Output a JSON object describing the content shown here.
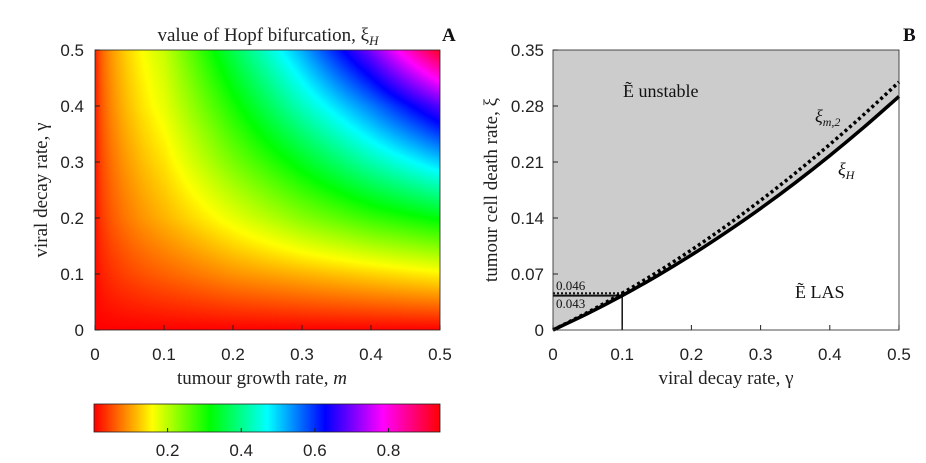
{
  "chart_data": [
    {
      "type": "heatmap",
      "panel_label": "A",
      "title": "value of Hopf bifurcation, ξ_H",
      "title_text": "value of Hopf bifurcation, ξ",
      "title_sub": "H",
      "xlabel": "tumour growth rate, m",
      "xlabel_text": "tumour growth rate, ",
      "xlabel_var": "m",
      "ylabel": "viral decay rate, γ",
      "xlim": [
        0,
        0.5
      ],
      "ylim": [
        0,
        0.5
      ],
      "xticks": [
        "0",
        "0.1",
        "0.2",
        "0.3",
        "0.4",
        "0.5"
      ],
      "yticks": [
        "0",
        "0.1",
        "0.2",
        "0.3",
        "0.4",
        "0.5"
      ],
      "colormap": "hsv",
      "grid_x": [
        0,
        0.1,
        0.2,
        0.3,
        0.4,
        0.5
      ],
      "grid_y": [
        0,
        0.1,
        0.2,
        0.3,
        0.4,
        0.5
      ],
      "z": [
        [
          0,
          0,
          0,
          0,
          0,
          0
        ],
        [
          0,
          0.06,
          0.09,
          0.11,
          0.13,
          0.15
        ],
        [
          0,
          0.11,
          0.17,
          0.23,
          0.28,
          0.32
        ],
        [
          0,
          0.14,
          0.24,
          0.33,
          0.42,
          0.5
        ],
        [
          0,
          0.17,
          0.3,
          0.43,
          0.55,
          0.68
        ],
        [
          0,
          0.19,
          0.36,
          0.52,
          0.7,
          0.92
        ]
      ],
      "colorbar": {
        "range": [
          0,
          0.94
        ],
        "ticks": [
          "0.2",
          "0.4",
          "0.6",
          "0.8"
        ],
        "location": "bottom"
      }
    },
    {
      "type": "line",
      "panel_label": "B",
      "xlabel": "viral decay rate, γ",
      "ylabel": "tumour cell death rate, ξ",
      "xlim": [
        0,
        0.5
      ],
      "ylim": [
        0,
        0.35
      ],
      "xticks": [
        "0",
        "0.1",
        "0.2",
        "0.3",
        "0.4",
        "0.5"
      ],
      "yticks": [
        "0",
        "0.07",
        "0.14",
        "0.21",
        "0.28",
        "0.35"
      ],
      "x": [
        0,
        0.05,
        0.1,
        0.15,
        0.2,
        0.25,
        0.3,
        0.35,
        0.4,
        0.45,
        0.5
      ],
      "series": [
        {
          "name": "ξ_H",
          "style": "solid",
          "values": [
            0,
            0.0205,
            0.043,
            0.0674,
            0.0937,
            0.122,
            0.152,
            0.184,
            0.218,
            0.254,
            0.292
          ]
        },
        {
          "name": "ξ_m,2",
          "style": "dotted",
          "values": [
            0,
            0.022,
            0.046,
            0.072,
            0.1,
            0.13,
            0.162,
            0.196,
            0.232,
            0.27,
            0.31
          ]
        }
      ],
      "shaded_region": {
        "label": "Ẽ unstable",
        "color": "#cccccc",
        "bounded_below_by": "ξ_H"
      },
      "region_labels": {
        "unstable": "Ẽ unstable",
        "stable": "Ẽ LAS"
      },
      "curve_labels": {
        "xi_m2": "ξ",
        "xi_m2_sub": "m,2",
        "xi_H": "ξ",
        "xi_H_sub": "H"
      },
      "reference": {
        "x": 0.1,
        "y_H": 0.043,
        "y_m2": 0.046,
        "label_H": "0.043",
        "label_m2": "0.046"
      }
    }
  ]
}
